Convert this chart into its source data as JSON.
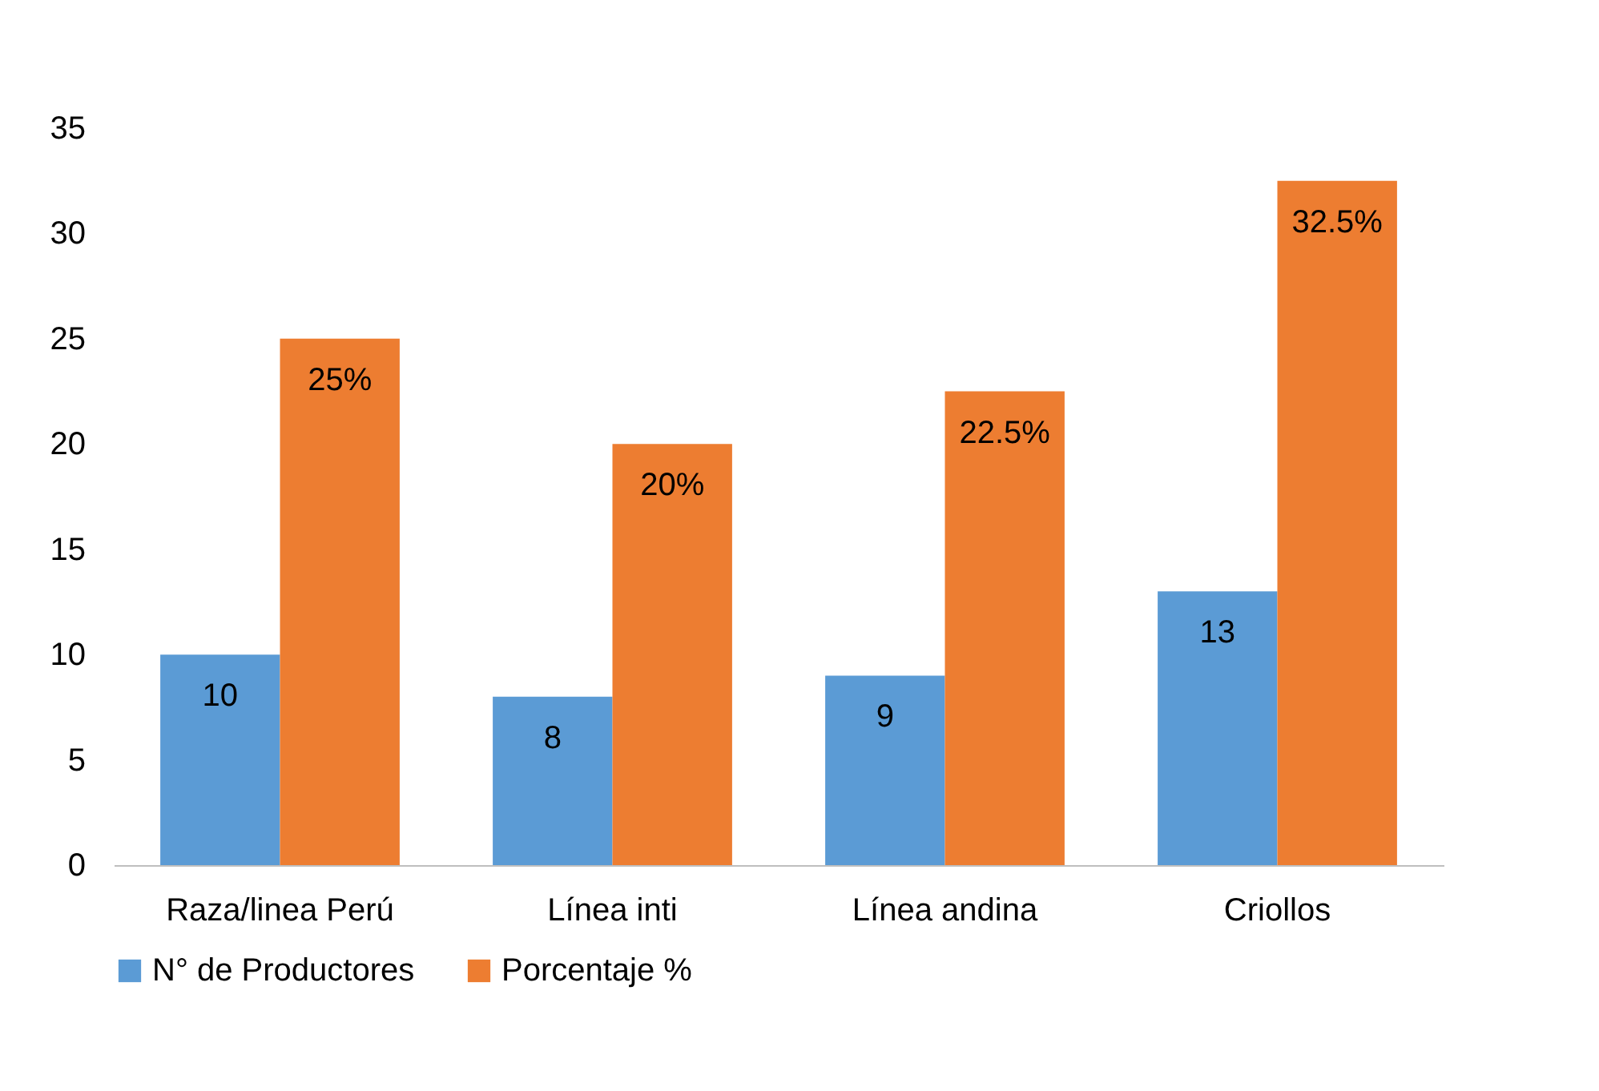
{
  "chart_data": {
    "type": "bar",
    "categories": [
      "Raza/linea Perú",
      "Línea inti",
      "Línea  andina",
      "Criollos"
    ],
    "series": [
      {
        "name": "N° de Productores",
        "color": "#5b9bd5",
        "values": [
          10,
          8,
          9,
          13
        ],
        "value_labels": [
          "10",
          "8",
          "9",
          "13"
        ]
      },
      {
        "name": "Porcentaje %",
        "color": "#ed7d31",
        "values": [
          25,
          20,
          22.5,
          32.5
        ],
        "value_labels": [
          "25%",
          "20%",
          "22.5%",
          "32.5%"
        ]
      }
    ],
    "ylim": [
      0,
      35
    ],
    "yticks": [
      0,
      5,
      10,
      15,
      20,
      25,
      30,
      35
    ],
    "grid": false,
    "legend": "bottom"
  }
}
